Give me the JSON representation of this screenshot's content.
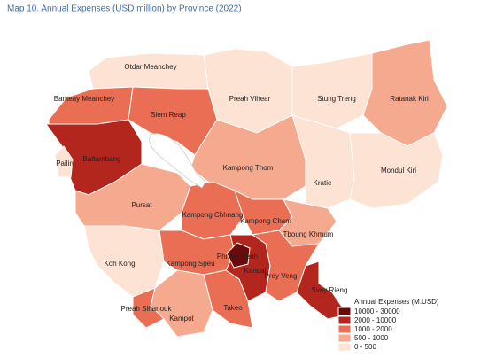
{
  "title": "Map 10. Annual Expenses (USD million) by Province (2022)",
  "legend": {
    "title": "Annual Expenses (M.USD)",
    "items": [
      {
        "label": "10000 - 30000",
        "color": "#6b0a0a"
      },
      {
        "label": "2000 - 10000",
        "color": "#b3261e"
      },
      {
        "label": "1000 - 2000",
        "color": "#ea6e54"
      },
      {
        "label": "500 - 1000",
        "color": "#f5a98e"
      },
      {
        "label": "0 - 500",
        "color": "#fde3d4"
      }
    ]
  },
  "provinces": [
    {
      "name": "Otdar Meanchey",
      "color": "#fde3d4"
    },
    {
      "name": "Banteay Meanchey",
      "color": "#ea6e54"
    },
    {
      "name": "Siem Reap",
      "color": "#ea6e54"
    },
    {
      "name": "Preah Vihear",
      "color": "#fde3d4"
    },
    {
      "name": "Stung Treng",
      "color": "#fde3d4"
    },
    {
      "name": "Ratanak Kiri",
      "color": "#f5a98e"
    },
    {
      "name": "Battambang",
      "color": "#b3261e"
    },
    {
      "name": "Pailin",
      "color": "#fde3d4"
    },
    {
      "name": "Kampong Thom",
      "color": "#f5a98e"
    },
    {
      "name": "Kratie",
      "color": "#fde3d4"
    },
    {
      "name": "Mondul Kiri",
      "color": "#fde3d4"
    },
    {
      "name": "Pursat",
      "color": "#f5a98e"
    },
    {
      "name": "Kampong Chhnang",
      "color": "#ea6e54"
    },
    {
      "name": "Kampong Cham",
      "color": "#ea6e54"
    },
    {
      "name": "Tboung Khmum",
      "color": "#f5a98e"
    },
    {
      "name": "Koh Kong",
      "color": "#fde3d4"
    },
    {
      "name": "Kampong Speu",
      "color": "#ea6e54"
    },
    {
      "name": "Kandal",
      "color": "#b3261e"
    },
    {
      "name": "Phnom Penh",
      "color": "#6b0a0a"
    },
    {
      "name": "Prey Veng",
      "color": "#ea6e54"
    },
    {
      "name": "Svay Rieng",
      "color": "#b3261e"
    },
    {
      "name": "Takeo",
      "color": "#ea6e54"
    },
    {
      "name": "Kampot",
      "color": "#f5a98e"
    },
    {
      "name": "Preah Sihanouk",
      "color": "#ea6e54"
    }
  ]
}
